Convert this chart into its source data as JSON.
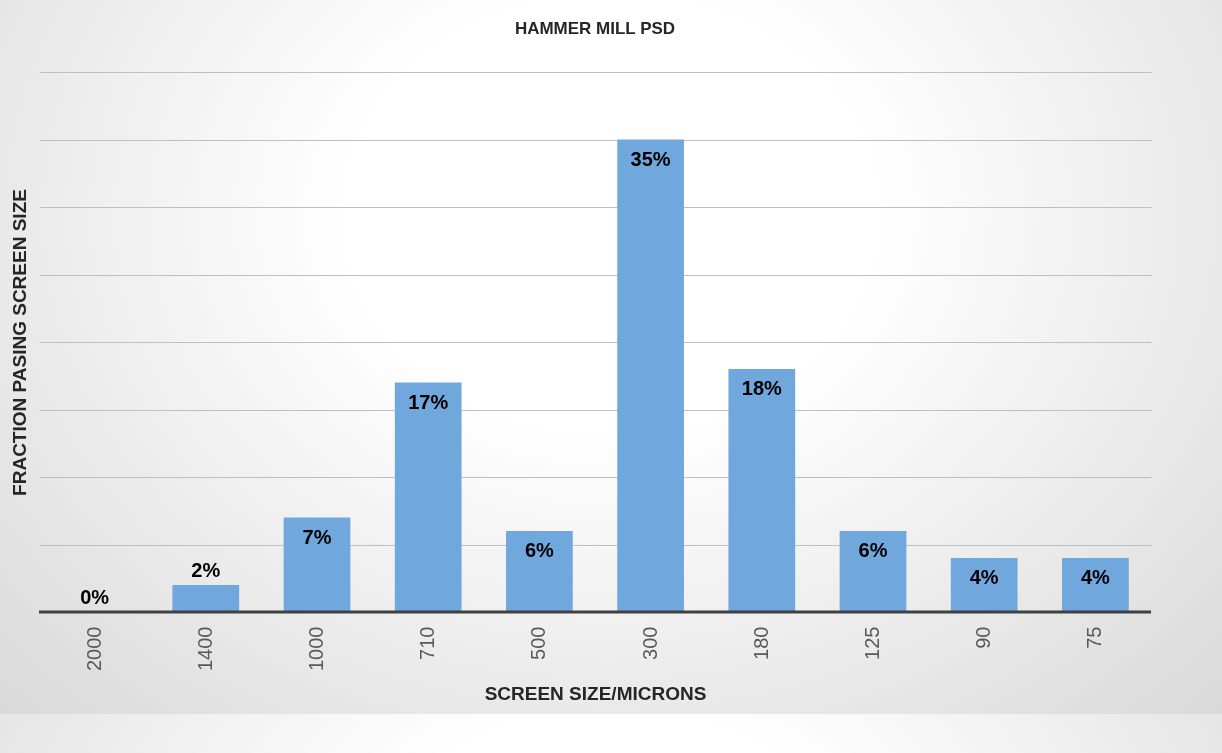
{
  "chart_data": {
    "type": "bar",
    "title": "HAMMER MILL PSD",
    "xlabel": "SCREEN SIZE/MICRONS",
    "ylabel": "FRACTION PASING SCREEN SIZE",
    "categories": [
      "2000",
      "1400",
      "1000",
      "710",
      "500",
      "300",
      "180",
      "125",
      "90",
      "75"
    ],
    "values": [
      0,
      2,
      7,
      17,
      6,
      35,
      18,
      6,
      4,
      4
    ],
    "value_labels": [
      "0%",
      "2%",
      "7%",
      "17%",
      "6%",
      "35%",
      "18%",
      "6%",
      "4%",
      "4%"
    ],
    "color": "#70a7dc",
    "ylim": [
      0,
      40
    ],
    "yticks": [
      {
        "value": 0,
        "label": null
      },
      {
        "value": 5,
        "label": null
      },
      {
        "value": 10,
        "label": null
      },
      {
        "value": 15,
        "label": null
      },
      {
        "value": 20,
        "label": null
      },
      {
        "value": 25,
        "label": null
      },
      {
        "value": 30,
        "label": null
      },
      {
        "value": 35,
        "label": null
      },
      {
        "value": 40,
        "label": null
      }
    ],
    "grid": "y",
    "tick_labels": "x"
  }
}
